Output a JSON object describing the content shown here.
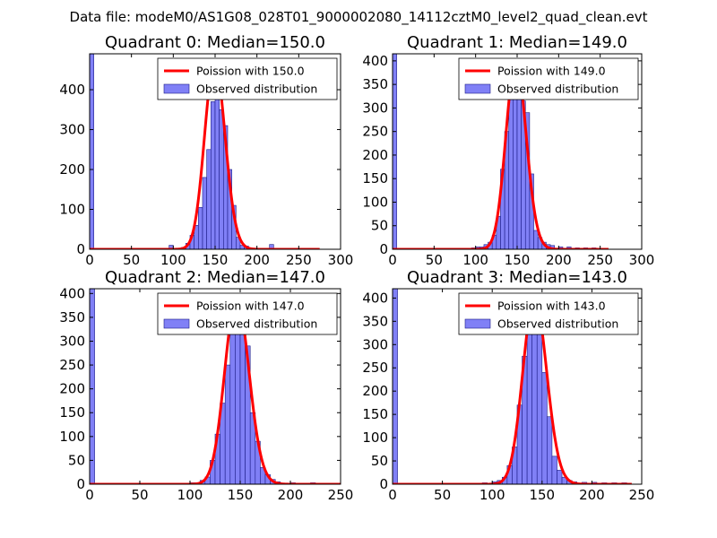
{
  "figure": {
    "title": "Data file: modeM0/AS1G08_028T01_9000002080_14112cztM0_level2_quad_clean.evt"
  },
  "colors": {
    "bar_fill": "#8080f6",
    "bar_edge": "#1c1c88",
    "poisson_line": "#ff0000",
    "axes": "#000000",
    "background": "#ffffff"
  },
  "chart_data": [
    {
      "type": "bar",
      "title": "Quadrant 0: Median=150.0",
      "xlim": [
        0,
        300
      ],
      "ylim": [
        0,
        490
      ],
      "xticks": [
        0,
        50,
        100,
        150,
        200,
        250,
        300
      ],
      "yticks": [
        0,
        100,
        200,
        300,
        400
      ],
      "bin_width": 5,
      "median": 150,
      "spike": {
        "x": 0,
        "value": 490
      },
      "bars": [
        {
          "x": 95,
          "value": 10
        },
        {
          "x": 110,
          "value": 5
        },
        {
          "x": 115,
          "value": 15
        },
        {
          "x": 120,
          "value": 35
        },
        {
          "x": 125,
          "value": 60
        },
        {
          "x": 130,
          "value": 105
        },
        {
          "x": 135,
          "value": 180
        },
        {
          "x": 140,
          "value": 250
        },
        {
          "x": 145,
          "value": 370
        },
        {
          "x": 150,
          "value": 445
        },
        {
          "x": 155,
          "value": 350
        },
        {
          "x": 160,
          "value": 310
        },
        {
          "x": 165,
          "value": 200
        },
        {
          "x": 170,
          "value": 110
        },
        {
          "x": 175,
          "value": 30
        },
        {
          "x": 180,
          "value": 10
        },
        {
          "x": 185,
          "value": 8
        },
        {
          "x": 215,
          "value": 12
        }
      ],
      "poisson_lambda": 150.0,
      "poisson_amplitude": 470,
      "poisson_x_range": [
        0,
        275
      ],
      "legend": [
        {
          "label": "Poission with 150.0",
          "kind": "line"
        },
        {
          "label": "Observed distribution",
          "kind": "patch"
        }
      ],
      "legend_loc": "upper right"
    },
    {
      "type": "bar",
      "title": "Quadrant 1: Median=149.0",
      "xlim": [
        0,
        300
      ],
      "ylim": [
        0,
        415
      ],
      "xticks": [
        0,
        50,
        100,
        150,
        200,
        250,
        300
      ],
      "yticks": [
        0,
        50,
        100,
        150,
        200,
        250,
        300,
        350,
        400
      ],
      "bin_width": 5,
      "median": 149,
      "spike": {
        "x": 0,
        "value": 415
      },
      "bars": [
        {
          "x": 95,
          "value": 3
        },
        {
          "x": 100,
          "value": 5
        },
        {
          "x": 105,
          "value": 5
        },
        {
          "x": 110,
          "value": 10
        },
        {
          "x": 115,
          "value": 15
        },
        {
          "x": 120,
          "value": 30
        },
        {
          "x": 125,
          "value": 70
        },
        {
          "x": 130,
          "value": 170
        },
        {
          "x": 135,
          "value": 250
        },
        {
          "x": 140,
          "value": 355
        },
        {
          "x": 145,
          "value": 390
        },
        {
          "x": 150,
          "value": 350
        },
        {
          "x": 155,
          "value": 315
        },
        {
          "x": 160,
          "value": 290
        },
        {
          "x": 165,
          "value": 160
        },
        {
          "x": 170,
          "value": 40
        },
        {
          "x": 175,
          "value": 25
        },
        {
          "x": 180,
          "value": 15
        },
        {
          "x": 185,
          "value": 10
        },
        {
          "x": 190,
          "value": 8
        },
        {
          "x": 200,
          "value": 5
        },
        {
          "x": 210,
          "value": 5
        },
        {
          "x": 220,
          "value": 3
        },
        {
          "x": 230,
          "value": 3
        },
        {
          "x": 240,
          "value": 3
        }
      ],
      "poisson_lambda": 149.0,
      "poisson_amplitude": 400,
      "poisson_x_range": [
        0,
        260
      ],
      "legend": [
        {
          "label": "Poission with 149.0",
          "kind": "line"
        },
        {
          "label": "Observed distribution",
          "kind": "patch"
        }
      ],
      "legend_loc": "upper right"
    },
    {
      "type": "bar",
      "title": "Quadrant 2: Median=147.0",
      "xlim": [
        0,
        250
      ],
      "ylim": [
        0,
        410
      ],
      "xticks": [
        0,
        50,
        100,
        150,
        200,
        250
      ],
      "yticks": [
        0,
        50,
        100,
        150,
        200,
        250,
        300,
        350,
        400
      ],
      "bin_width": 5,
      "median": 147,
      "spike": {
        "x": 0,
        "value": 410
      },
      "bars": [
        {
          "x": 100,
          "value": 3
        },
        {
          "x": 105,
          "value": 3
        },
        {
          "x": 110,
          "value": 8
        },
        {
          "x": 115,
          "value": 15
        },
        {
          "x": 120,
          "value": 50
        },
        {
          "x": 125,
          "value": 105
        },
        {
          "x": 130,
          "value": 170
        },
        {
          "x": 135,
          "value": 250
        },
        {
          "x": 140,
          "value": 340
        },
        {
          "x": 145,
          "value": 380
        },
        {
          "x": 150,
          "value": 360
        },
        {
          "x": 155,
          "value": 290
        },
        {
          "x": 160,
          "value": 150
        },
        {
          "x": 165,
          "value": 90
        },
        {
          "x": 170,
          "value": 35
        },
        {
          "x": 175,
          "value": 20
        },
        {
          "x": 180,
          "value": 10
        },
        {
          "x": 185,
          "value": 5
        },
        {
          "x": 200,
          "value": 3
        },
        {
          "x": 220,
          "value": 3
        }
      ],
      "poisson_lambda": 147.0,
      "poisson_amplitude": 390,
      "poisson_x_range": [
        0,
        250
      ],
      "legend": [
        {
          "label": "Poission with 147.0",
          "kind": "line"
        },
        {
          "label": "Observed distribution",
          "kind": "patch"
        }
      ],
      "legend_loc": "upper right"
    },
    {
      "type": "bar",
      "title": "Quadrant 3: Median=143.0",
      "xlim": [
        0,
        250
      ],
      "ylim": [
        0,
        420
      ],
      "xticks": [
        0,
        50,
        100,
        150,
        200,
        250
      ],
      "yticks": [
        0,
        50,
        100,
        150,
        200,
        250,
        300,
        350,
        400
      ],
      "bin_width": 5,
      "median": 143,
      "spike": {
        "x": 0,
        "value": 420
      },
      "bars": [
        {
          "x": 90,
          "value": 3
        },
        {
          "x": 100,
          "value": 5
        },
        {
          "x": 105,
          "value": 8
        },
        {
          "x": 110,
          "value": 15
        },
        {
          "x": 115,
          "value": 40
        },
        {
          "x": 120,
          "value": 80
        },
        {
          "x": 125,
          "value": 170
        },
        {
          "x": 130,
          "value": 275
        },
        {
          "x": 135,
          "value": 350
        },
        {
          "x": 140,
          "value": 395
        },
        {
          "x": 145,
          "value": 345
        },
        {
          "x": 150,
          "value": 240
        },
        {
          "x": 155,
          "value": 145
        },
        {
          "x": 160,
          "value": 60
        },
        {
          "x": 165,
          "value": 30
        },
        {
          "x": 170,
          "value": 15
        },
        {
          "x": 175,
          "value": 8
        },
        {
          "x": 180,
          "value": 5
        },
        {
          "x": 190,
          "value": 4
        },
        {
          "x": 200,
          "value": 4
        },
        {
          "x": 210,
          "value": 3
        },
        {
          "x": 220,
          "value": 3
        },
        {
          "x": 230,
          "value": 3
        }
      ],
      "poisson_lambda": 143.0,
      "poisson_amplitude": 400,
      "poisson_x_range": [
        0,
        240
      ],
      "legend": [
        {
          "label": "Poission with 143.0",
          "kind": "line"
        },
        {
          "label": "Observed distribution",
          "kind": "patch"
        }
      ],
      "legend_loc": "upper right"
    }
  ]
}
